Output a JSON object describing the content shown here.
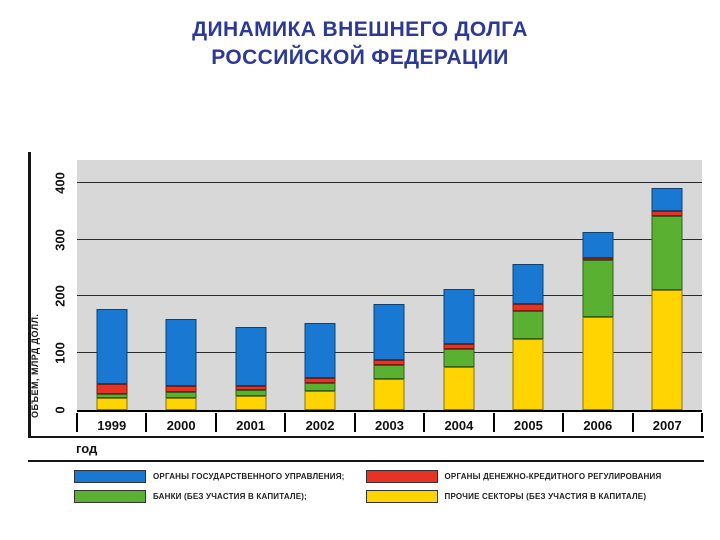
{
  "title": {
    "line1": "ДИНАМИКА ВНЕШНЕГО ДОЛГА",
    "line2": "РОССИЙСКОЙ ФЕДЕРАЦИИ"
  },
  "colors": {
    "title_text": "#2c3a96",
    "plot_background": "#d8d8d8",
    "government": "#1878d2",
    "monetary": "#e63323",
    "banks": "#5ab031",
    "other_sectors": "#ffd400"
  },
  "chart_data": {
    "type": "bar",
    "stacked": true,
    "title": "ДИНАМИКА ВНЕШНЕГО ДОЛГА РОССИЙСКОЙ ФЕДЕРАЦИИ",
    "xlabel": "год",
    "ylabel": "ОБЪЕМ, МЛРД ДОЛЛ.",
    "categories": [
      "1999",
      "2000",
      "2001",
      "2002",
      "2003",
      "2004",
      "2005",
      "2006",
      "2007"
    ],
    "yticks": [
      0,
      100,
      200,
      300,
      400
    ],
    "ylim": [
      0,
      440
    ],
    "grid": true,
    "legend_position": "bottom",
    "units": "млрд долл.",
    "stack_bottom_to_top": [
      3,
      2,
      1,
      0
    ],
    "series": [
      {
        "name": "ОРГАНЫ ГОСУДАРСТВЕННОГО УПРАВЛЕНИЯ;",
        "color": "#1878d2",
        "values": [
          133,
          117,
          103,
          97,
          98,
          97,
          71,
          45,
          40
        ]
      },
      {
        "name": "ОРГАНЫ ДЕНЕЖНО-КРЕДИТНОГО РЕГУЛИРОВАНИЯ",
        "color": "#e63323",
        "values": [
          16,
          12,
          8,
          8,
          8,
          8,
          11,
          4,
          9
        ]
      },
      {
        "name": "БАНКИ (БЕЗ УЧАСТИЯ В КАПИТАЛЕ);",
        "color": "#5ab031",
        "values": [
          8,
          9,
          11,
          14,
          25,
          32,
          50,
          101,
          131
        ]
      },
      {
        "name": "ПРОЧИЕ СЕКТОРЫ (БЕЗ УЧАСТИЯ В КАПИТАЛЕ)",
        "color": "#ffd400",
        "values": [
          21,
          22,
          24,
          34,
          55,
          76,
          125,
          163,
          211
        ]
      }
    ],
    "totals": [
      178,
      160,
      146,
      153,
      186,
      213,
      257,
      313,
      391
    ]
  }
}
